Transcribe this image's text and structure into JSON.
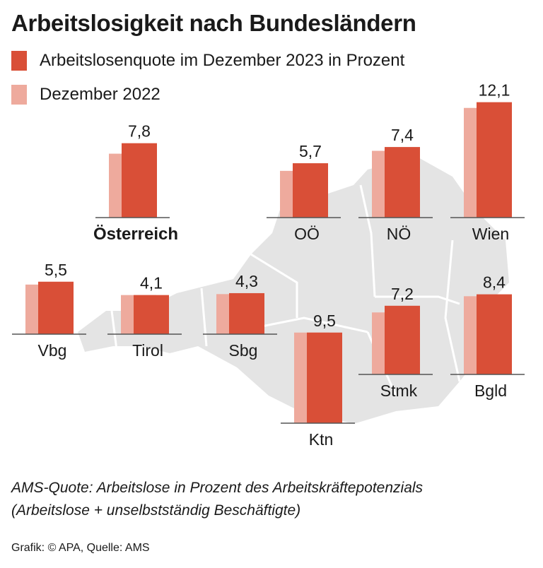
{
  "header": {
    "title": "Arbeitslosigkeit nach Bundesländern"
  },
  "colors": {
    "current": "#d94f37",
    "previous": "#eeaa9d",
    "map": "#e4e4e4",
    "map_border": "#ffffff",
    "baseline": "#555555"
  },
  "legend": [
    {
      "label": "Arbeitslosenquote im Dezember 2023 in Prozent",
      "color": "#d94f37"
    },
    {
      "label": "Dezember 2022",
      "color": "#eeaa9d"
    }
  ],
  "chart_data": {
    "type": "bar",
    "title": "Arbeitslosigkeit nach Bundesländern",
    "series": [
      {
        "name": "Arbeitslosenquote im Dezember 2023 in Prozent",
        "color": "#d94f37"
      },
      {
        "name": "Dezember 2022",
        "color": "#eeaa9d"
      }
    ],
    "regions": [
      {
        "label": "Österreich",
        "value_2023": 7.8,
        "value_2022": 6.7,
        "value_label": "7,8",
        "bold": true
      },
      {
        "label": "OÖ",
        "value_2023": 5.7,
        "value_2022": 4.9,
        "value_label": "5,7"
      },
      {
        "label": "NÖ",
        "value_2023": 7.4,
        "value_2022": 7.0,
        "value_label": "7,4"
      },
      {
        "label": "Wien",
        "value_2023": 12.1,
        "value_2022": 11.5,
        "value_label": "12,1"
      },
      {
        "label": "Vbg",
        "value_2023": 5.5,
        "value_2022": 5.2,
        "value_label": "5,5"
      },
      {
        "label": "Tirol",
        "value_2023": 4.1,
        "value_2022": 4.1,
        "value_label": "4,1"
      },
      {
        "label": "Sbg",
        "value_2023": 4.3,
        "value_2022": 4.2,
        "value_label": "4,3"
      },
      {
        "label": "Ktn",
        "value_2023": 9.5,
        "value_2022": 9.5,
        "value_label": "9,5"
      },
      {
        "label": "Stmk",
        "value_2023": 7.2,
        "value_2022": 6.5,
        "value_label": "7,2"
      },
      {
        "label": "Bgld",
        "value_2023": 8.4,
        "value_2022": 8.2,
        "value_label": "8,4"
      }
    ]
  },
  "footer": {
    "note_line1": "AMS-Quote: Arbeitslose in Prozent des Arbeitskräftepotenzials",
    "note_line2": "(Arbeitslose + unselbstständig Beschäftigte)",
    "source": "Grafik: © APA, Quelle: AMS"
  }
}
